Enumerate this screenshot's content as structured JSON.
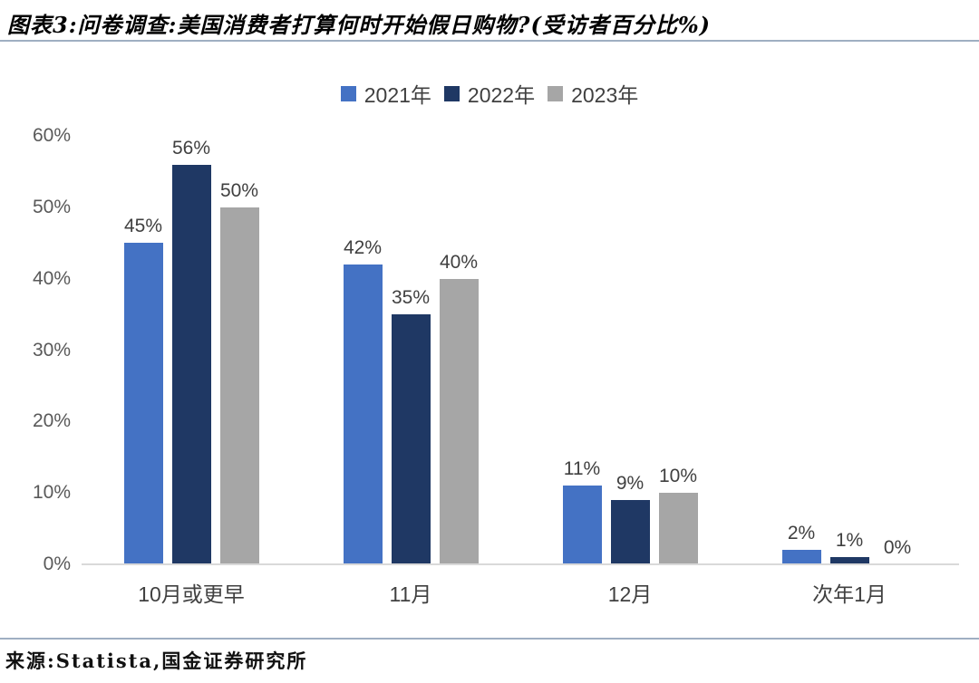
{
  "title": "图表3:问卷调查:美国消费者打算何时开始假日购物?(受访者百分比%)",
  "source": "来源:Statista,国金证券研究所",
  "colors": {
    "rule": "#9FAFC2",
    "axis_line": "#D9D9D9",
    "series_2021": "#4472C4",
    "series_2022": "#1F3864",
    "series_2023": "#A6A6A6",
    "tick_text": "#595959",
    "label_text": "#404040"
  },
  "chart_data": {
    "type": "bar",
    "title": "图表3:问卷调查:美国消费者打算何时开始假日购物?(受访者百分比%)",
    "categories": [
      "10月或更早",
      "11月",
      "12月",
      "次年1月"
    ],
    "series": [
      {
        "name": "2021年",
        "color": "#4472C4",
        "values": [
          45,
          42,
          11,
          2
        ]
      },
      {
        "name": "2022年",
        "color": "#1F3864",
        "values": [
          56,
          35,
          9,
          1
        ]
      },
      {
        "name": "2023年",
        "color": "#A6A6A6",
        "values": [
          50,
          40,
          10,
          0
        ]
      }
    ],
    "value_suffix": "%",
    "xlabel": "",
    "ylabel": "",
    "ylim": [
      0,
      60
    ],
    "ytick_step": 10,
    "yticks": [
      "0%",
      "10%",
      "20%",
      "30%",
      "40%",
      "50%",
      "60%"
    ],
    "grid": false,
    "legend_position": "top-center",
    "source_label": "来源:Statista,国金证券研究所"
  }
}
